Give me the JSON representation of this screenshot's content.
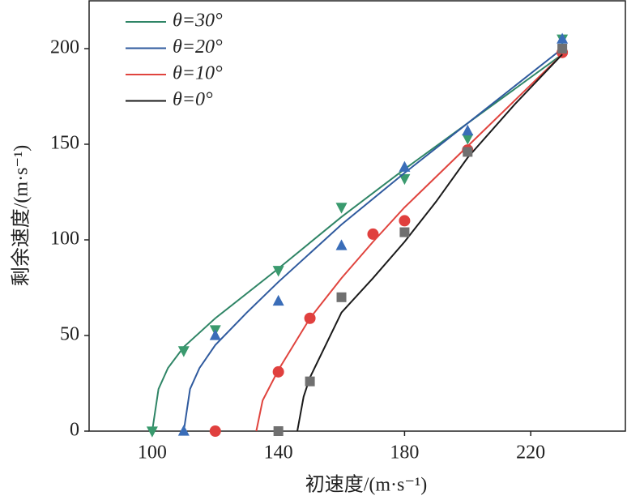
{
  "chart_data": {
    "type": "scatter",
    "x_label": "初速度/(m·s⁻¹)",
    "y_label": "剩余速度/(m·s⁻¹)",
    "xlim": [
      80,
      250
    ],
    "xticks": [
      100,
      140,
      180,
      220
    ],
    "ylim": [
      0,
      225
    ],
    "yticks": [
      0,
      50,
      100,
      150,
      200
    ],
    "legend": "upper-left",
    "series": [
      {
        "name": "θ=30°",
        "color": "#2f8566",
        "marker_color": "#3a9a6e",
        "marker": "triangle-down",
        "x": [
          100,
          110,
          120,
          140,
          160,
          180,
          200,
          230
        ],
        "values": [
          0,
          42,
          53,
          84,
          117,
          132,
          153,
          205
        ],
        "curve": {
          "x": [
            100,
            102,
            105,
            110,
            120,
            140,
            160,
            180,
            200,
            230
          ],
          "values": [
            0,
            22,
            33,
            44,
            59,
            85,
            112,
            137,
            161,
            197
          ]
        }
      },
      {
        "name": "θ=20°",
        "color": "#2f5a9e",
        "marker_color": "#3a6db8",
        "marker": "triangle-up",
        "x": [
          110,
          120,
          140,
          160,
          180,
          200,
          230
        ],
        "values": [
          0,
          50,
          68,
          97,
          138,
          157,
          205
        ],
        "curve": {
          "x": [
            110,
            112,
            115,
            120,
            130,
            140,
            160,
            180,
            200,
            230
          ],
          "values": [
            0,
            22,
            33,
            45,
            62,
            78,
            108,
            135,
            161,
            200
          ]
        }
      },
      {
        "name": "θ=10°",
        "color": "#e0443e",
        "marker_color": "#e0403e",
        "marker": "circle",
        "x": [
          120,
          140,
          150,
          170,
          180,
          200,
          230
        ],
        "values": [
          0,
          31,
          59,
          103,
          110,
          147,
          198
        ],
        "curve": {
          "x": [
            133,
            135,
            140,
            150,
            160,
            170,
            180,
            200,
            230
          ],
          "values": [
            0,
            16,
            32,
            59,
            80,
            99,
            117,
            149,
            197
          ]
        }
      },
      {
        "name": "θ=0°",
        "color": "#1a1a1a",
        "marker_color": "#707070",
        "marker": "square",
        "x": [
          140,
          150,
          160,
          180,
          200,
          230
        ],
        "values": [
          0,
          26,
          70,
          104,
          146,
          200
        ],
        "curve": {
          "x": [
            146,
            148,
            150,
            160,
            170,
            180,
            190,
            200,
            215,
            230
          ],
          "values": [
            0,
            18,
            28,
            62,
            80,
            99,
            120,
            143,
            171,
            197
          ]
        }
      }
    ]
  }
}
